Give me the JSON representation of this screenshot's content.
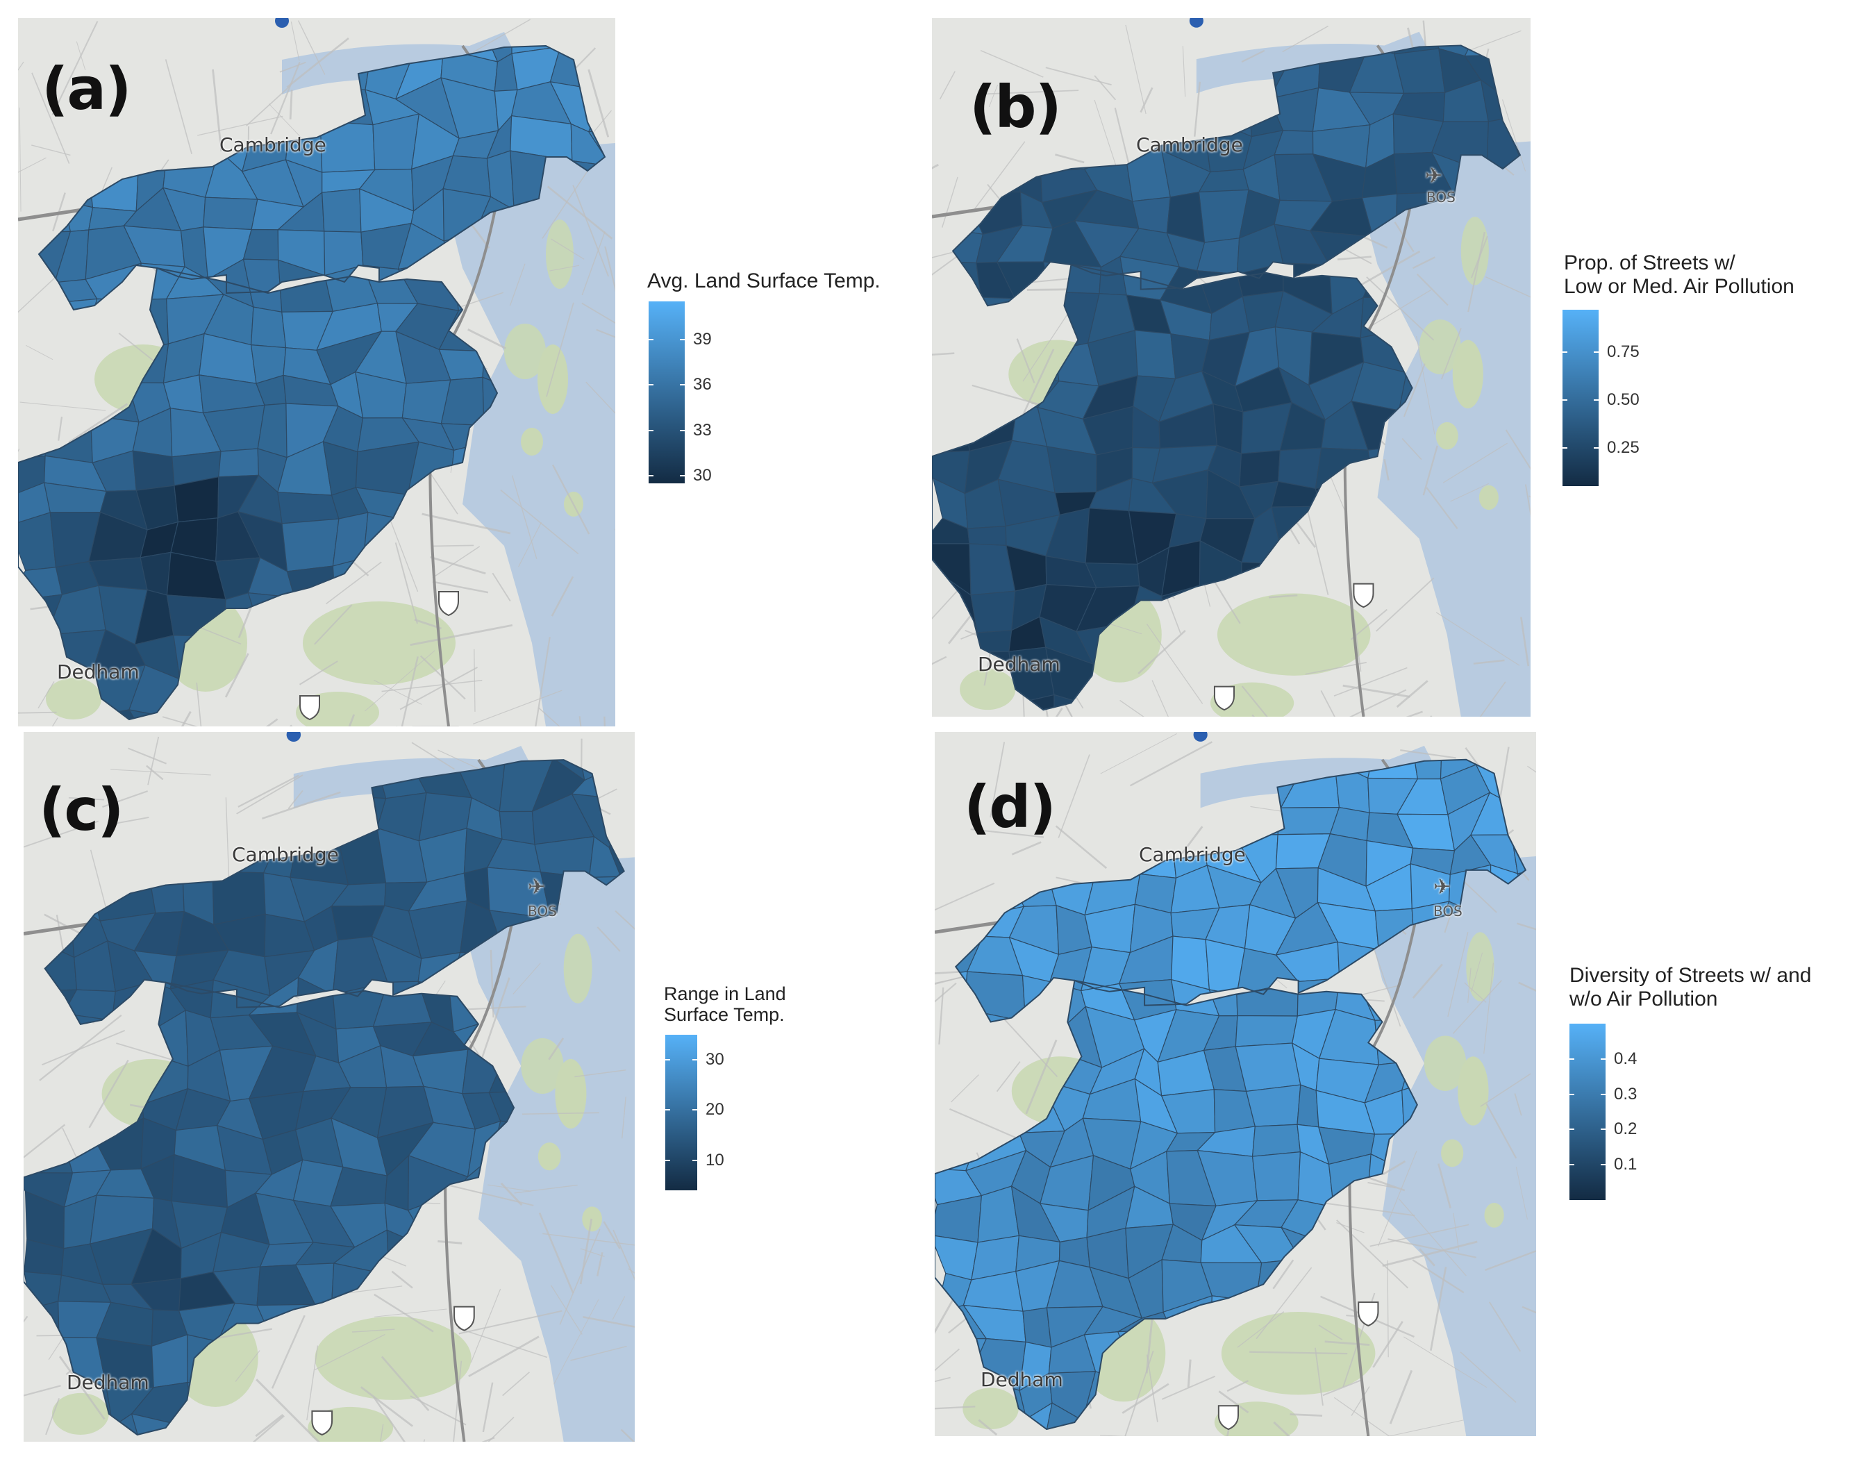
{
  "colors": {
    "water": "#b8cbe0",
    "land": "#e4e5e2",
    "park": "#c9d8b4",
    "road": "#bfbfbf",
    "fill_low": "#132b43",
    "fill_high": "#56b1f7",
    "boundary": "#2c4a66",
    "na_fill": "#7f7f7f"
  },
  "places": {
    "cambridge": "Cambridge",
    "dedham": "Dedham",
    "airport": "BOS"
  },
  "panels": [
    {
      "id": "a",
      "label": "(a)",
      "legend": {
        "title": [
          "Avg. Land Surface Temp."
        ],
        "range": [
          29.5,
          41.5
        ],
        "ticks": [
          {
            "value": 39,
            "label": "39"
          },
          {
            "value": 36,
            "label": "36"
          },
          {
            "value": 33,
            "label": "33"
          },
          {
            "value": 30,
            "label": "30"
          }
        ]
      },
      "shading": {
        "base": 0.52,
        "gradient": 0.35,
        "dark_spot": 0.55,
        "noise": 0.14
      }
    },
    {
      "id": "b",
      "label": "(b)",
      "legend": {
        "title": [
          "Prop. of Streets w/",
          "Low or Med. Air Pollution"
        ],
        "range": [
          0.05,
          0.97
        ],
        "ticks": [
          {
            "value": 0.75,
            "label": "0.75"
          },
          {
            "value": 0.5,
            "label": "0.50"
          },
          {
            "value": 0.25,
            "label": "0.25"
          }
        ]
      },
      "shading": {
        "base": 0.28,
        "gradient": 0.3,
        "dark_spot": 0.1,
        "noise": 0.16
      }
    },
    {
      "id": "c",
      "label": "(c)",
      "legend": {
        "title": [
          "Range in Land",
          "Surface Temp."
        ],
        "range": [
          4,
          35
        ],
        "ticks": [
          {
            "value": 30,
            "label": "30"
          },
          {
            "value": 20,
            "label": "20"
          },
          {
            "value": 10,
            "label": "10"
          }
        ]
      },
      "shading": {
        "base": 0.38,
        "gradient": -0.05,
        "dark_spot": 0.15,
        "noise": 0.14
      }
    },
    {
      "id": "d",
      "label": "(d)",
      "legend": {
        "title": [
          "Diversity of Streets w/ and",
          "w/o Air Pollution"
        ],
        "range": [
          0.0,
          0.5
        ],
        "ticks": [
          {
            "value": 0.4,
            "label": "0.4"
          },
          {
            "value": 0.3,
            "label": "0.3"
          },
          {
            "value": 0.2,
            "label": "0.2"
          },
          {
            "value": 0.1,
            "label": "0.1"
          }
        ]
      },
      "shading": {
        "base": 0.78,
        "gradient": 0.1,
        "dark_spot": 0.2,
        "noise": 0.14
      }
    }
  ]
}
